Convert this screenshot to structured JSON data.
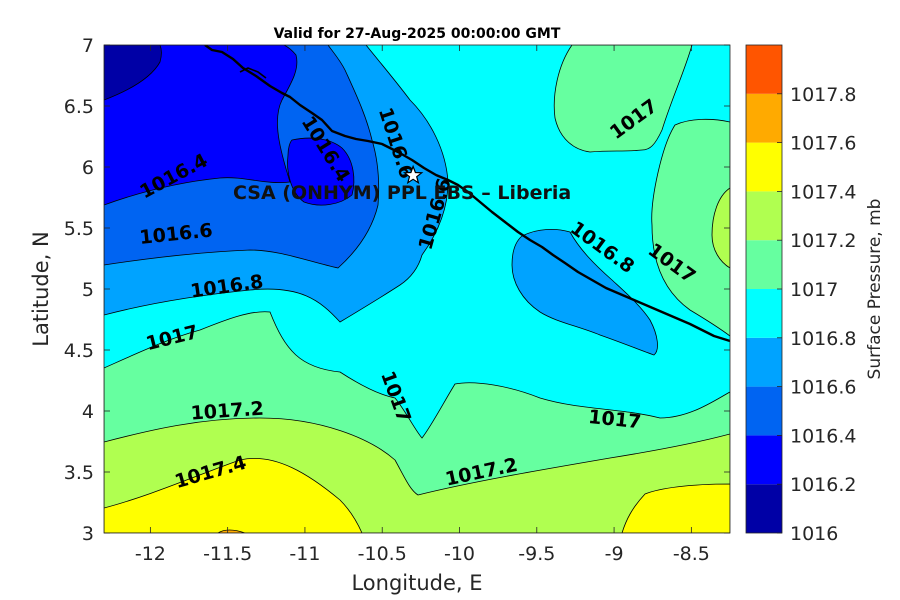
{
  "chart_data": {
    "type": "filled-contour-map",
    "title": "Valid for 27-Aug-2025 00:00:00 GMT",
    "xlabel": "Longitude, E",
    "ylabel": "Latitude, N",
    "xlim": [
      -12.3,
      -8.25
    ],
    "ylim": [
      3,
      7
    ],
    "x_ticks": [
      "-12",
      "-11.5",
      "-11",
      "-10.5",
      "-10",
      "-9.5",
      "-9",
      "-8.5"
    ],
    "y_ticks": [
      "3",
      "3.5",
      "4",
      "4.5",
      "5",
      "5.5",
      "6",
      "6.5",
      "7"
    ],
    "colorbar": {
      "label": "Surface Pressure, mb",
      "levels": [
        "1016",
        "1016.2",
        "1016.4",
        "1016.6",
        "1016.8",
        "1017",
        "1017.2",
        "1017.4",
        "1017.6",
        "1017.8"
      ],
      "colors": [
        "#0000a6",
        "#0000ff",
        "#0064f2",
        "#00a3ff",
        "#00ffff",
        "#66ffa0",
        "#b0ff50",
        "#ffff00",
        "#ffaa00",
        "#ff5500"
      ]
    },
    "contour_labels": [
      {
        "text": "1016.4",
        "lon": -11.83,
        "lat": 5.88,
        "angle": -28
      },
      {
        "text": "1016.6",
        "lon": -11.83,
        "lat": 5.4,
        "angle": -6
      },
      {
        "text": "1016.8",
        "lon": -11.5,
        "lat": 4.97,
        "angle": -8
      },
      {
        "text": "1017",
        "lon": -11.85,
        "lat": 4.55,
        "angle": -14
      },
      {
        "text": "1017.2",
        "lon": -11.5,
        "lat": 3.95,
        "angle": -4
      },
      {
        "text": "1017.4",
        "lon": -11.6,
        "lat": 3.45,
        "angle": -16
      },
      {
        "text": "1016.4",
        "lon": -10.9,
        "lat": 6.12,
        "angle": 58
      },
      {
        "text": "1016.6",
        "lon": -10.45,
        "lat": 6.18,
        "angle": 72
      },
      {
        "text": "1016.6",
        "lon": -10.12,
        "lat": 5.6,
        "angle": -74
      },
      {
        "text": "1017",
        "lon": -10.45,
        "lat": 4.1,
        "angle": 70
      },
      {
        "text": "1017.2",
        "lon": -9.85,
        "lat": 3.45,
        "angle": -12
      },
      {
        "text": "1017",
        "lon": -9.0,
        "lat": 3.88,
        "angle": 6
      },
      {
        "text": "1016.8",
        "lon": -9.1,
        "lat": 5.3,
        "angle": 36
      },
      {
        "text": "1017",
        "lon": -8.65,
        "lat": 5.17,
        "angle": 36
      },
      {
        "text": "1017",
        "lon": -8.85,
        "lat": 6.35,
        "angle": -36
      }
    ],
    "site": {
      "name": "CSA (ONHYM) PPL EBS  – Liberia",
      "lon": -10.3,
      "lat": 5.93
    },
    "grid": false,
    "colorbar_placement": "right"
  }
}
